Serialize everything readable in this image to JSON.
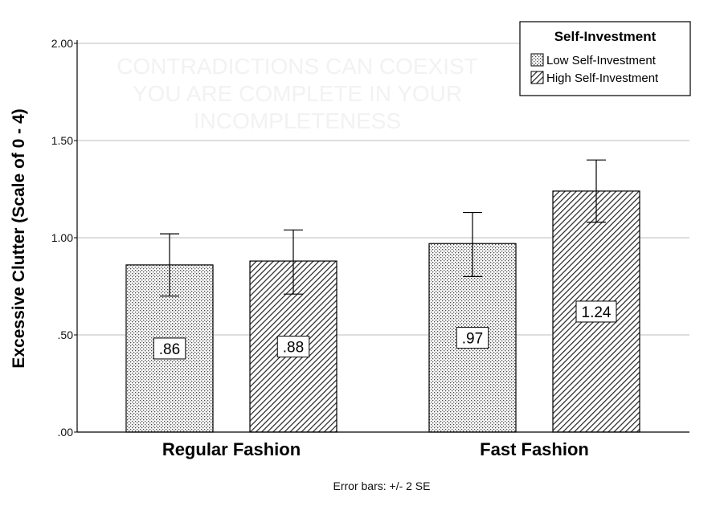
{
  "chart_data": {
    "type": "bar",
    "ylabel": "Excessive Clutter (Scale of 0 - 4)",
    "xlabel": "",
    "ylim": [
      0,
      2
    ],
    "yticks": [
      0,
      0.5,
      1.0,
      1.5,
      2.0
    ],
    "ytick_labels": [
      ".00",
      ".50",
      "1.00",
      "1.50",
      "2.00"
    ],
    "grid": "horizontal",
    "categories": [
      "Regular Fashion",
      "Fast Fashion"
    ],
    "legend": {
      "title": "Self-Investment",
      "position": "top-right"
    },
    "series": [
      {
        "name": "Low Self-Investment",
        "pattern": "dots",
        "values": [
          0.86,
          0.97
        ],
        "value_labels": [
          ".86",
          ".97"
        ],
        "error_low": [
          0.7,
          0.8
        ],
        "error_high": [
          1.02,
          1.13
        ]
      },
      {
        "name": "High Self-Investment",
        "pattern": "diagonal-hatch",
        "values": [
          0.88,
          1.24
        ],
        "value_labels": [
          ".88",
          "1.24"
        ],
        "error_low": [
          0.71,
          1.08
        ],
        "error_high": [
          1.04,
          1.4
        ]
      }
    ],
    "footnote": "Error bars: +/- 2 SE",
    "watermark": "CONTRADICTIONS CAN COEXIST YOU ARE COMPLETE IN YOUR INCOMPLETENESS",
    "colors": {
      "bar_fill": "#ffffff",
      "pattern": "#333333",
      "grid": "#bdbdbd",
      "axis": "#000000"
    }
  }
}
